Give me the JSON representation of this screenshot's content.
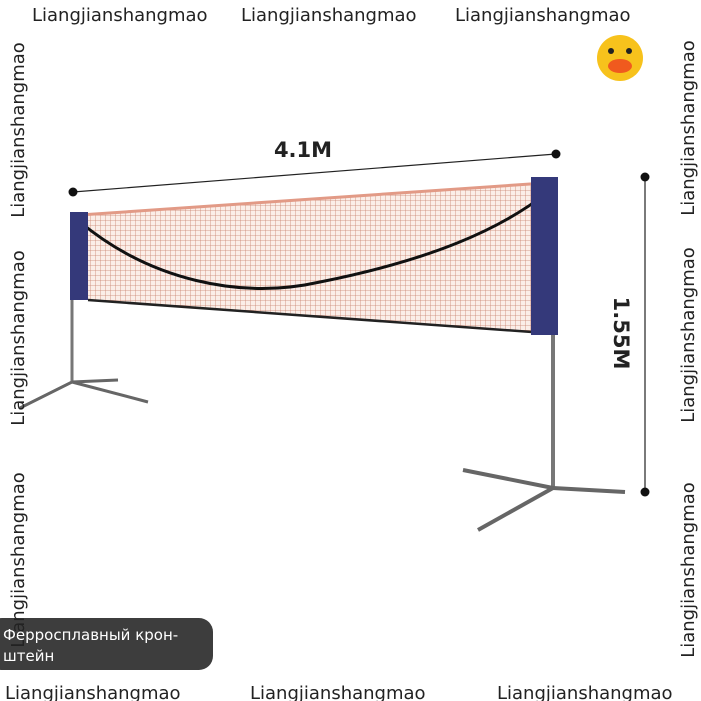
{
  "watermarks": [
    "Liangjianshangmao",
    "Liangjianshangmao",
    "Liangjianshangmao",
    "Liangjianshangmao",
    "Liangjianshangmao",
    "Liangjianshangmao",
    "Liangjianshangmao",
    "Liangjianshangmao",
    "Liangjianshangmao",
    "Liangjianshangmao",
    "Liangjianshangmao",
    "Liangjianshangmao"
  ],
  "dimensions": {
    "width": "4.1M",
    "height": "1.55M"
  },
  "caption": [
    "Ферросплавный крон-",
    "штейн"
  ]
}
